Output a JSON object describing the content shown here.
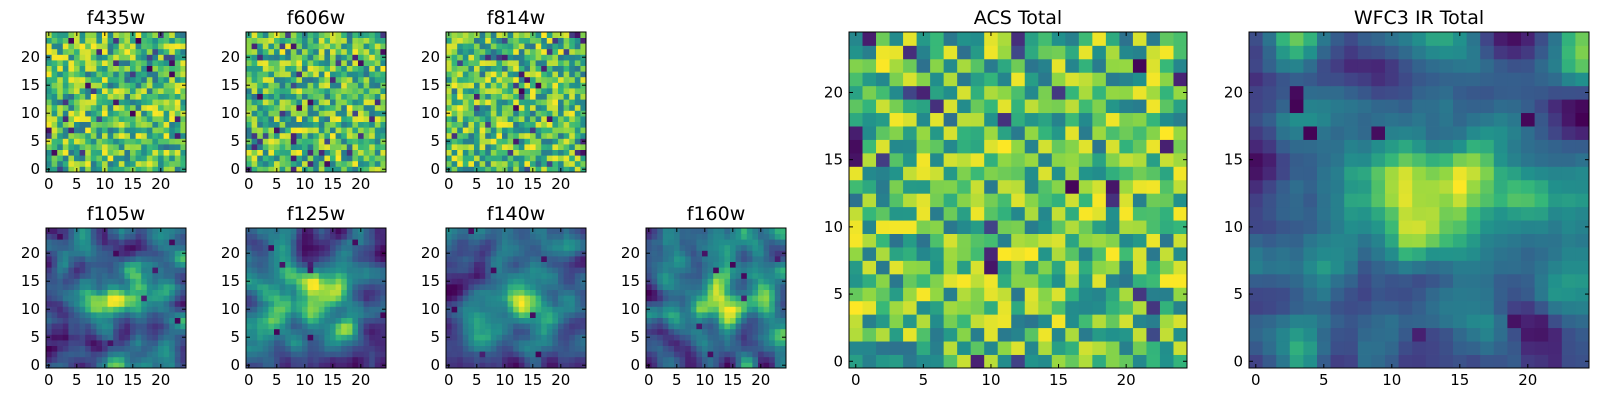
{
  "figure": {
    "colormap": "viridis",
    "colors": {
      "viridis_low": "#440154",
      "viridis_mid": "#21918c",
      "viridis_high": "#fde725",
      "background": "#ffffff",
      "axis": "#000000"
    }
  },
  "chart_data": [
    {
      "type": "heatmap",
      "title": "f435w",
      "grid_size": 25,
      "xlim": [
        -0.5,
        24.5
      ],
      "ylim": [
        -0.5,
        24.5
      ],
      "xticks": [
        0,
        5,
        10,
        15,
        20
      ],
      "yticks": [
        0,
        5,
        10,
        15,
        20
      ],
      "xtick_labels": [
        "0",
        "5",
        "10",
        "15",
        "20"
      ],
      "ytick_labels": [
        "0",
        "5",
        "10",
        "15",
        "20"
      ],
      "pattern": "noise",
      "seed": 11
    },
    {
      "type": "heatmap",
      "title": "f606w",
      "grid_size": 25,
      "xlim": [
        -0.5,
        24.5
      ],
      "ylim": [
        -0.5,
        24.5
      ],
      "xticks": [
        0,
        5,
        10,
        15,
        20
      ],
      "yticks": [
        0,
        5,
        10,
        15,
        20
      ],
      "xtick_labels": [
        "0",
        "5",
        "10",
        "15",
        "20"
      ],
      "ytick_labels": [
        "0",
        "5",
        "10",
        "15",
        "20"
      ],
      "pattern": "noise",
      "seed": 23
    },
    {
      "type": "heatmap",
      "title": "f814w",
      "grid_size": 25,
      "xlim": [
        -0.5,
        24.5
      ],
      "ylim": [
        -0.5,
        24.5
      ],
      "xticks": [
        0,
        5,
        10,
        15,
        20
      ],
      "yticks": [
        0,
        5,
        10,
        15,
        20
      ],
      "xtick_labels": [
        "0",
        "5",
        "10",
        "15",
        "20"
      ],
      "ytick_labels": [
        "0",
        "5",
        "10",
        "15",
        "20"
      ],
      "pattern": "noise",
      "seed": 37
    },
    {
      "type": "heatmap",
      "title": "f105w",
      "grid_size": 25,
      "xlim": [
        -0.5,
        24.5
      ],
      "ylim": [
        -0.5,
        24.5
      ],
      "xticks": [
        0,
        5,
        10,
        15,
        20
      ],
      "yticks": [
        0,
        5,
        10,
        15,
        20
      ],
      "xtick_labels": [
        "0",
        "5",
        "10",
        "15",
        "20"
      ],
      "ytick_labels": [
        "0",
        "5",
        "10",
        "15",
        "20"
      ],
      "pattern": "smooth",
      "seed": 41
    },
    {
      "type": "heatmap",
      "title": "f125w",
      "grid_size": 25,
      "xlim": [
        -0.5,
        24.5
      ],
      "ylim": [
        -0.5,
        24.5
      ],
      "xticks": [
        0,
        5,
        10,
        15,
        20
      ],
      "yticks": [
        0,
        5,
        10,
        15,
        20
      ],
      "xtick_labels": [
        "0",
        "5",
        "10",
        "15",
        "20"
      ],
      "ytick_labels": [
        "0",
        "5",
        "10",
        "15",
        "20"
      ],
      "pattern": "smooth",
      "seed": 53
    },
    {
      "type": "heatmap",
      "title": "f140w",
      "grid_size": 25,
      "xlim": [
        -0.5,
        24.5
      ],
      "ylim": [
        -0.5,
        24.5
      ],
      "xticks": [
        0,
        5,
        10,
        15,
        20
      ],
      "yticks": [
        0,
        5,
        10,
        15,
        20
      ],
      "xtick_labels": [
        "0",
        "5",
        "10",
        "15",
        "20"
      ],
      "ytick_labels": [
        "0",
        "5",
        "10",
        "15",
        "20"
      ],
      "pattern": "smooth",
      "seed": 67
    },
    {
      "type": "heatmap",
      "title": "f160w",
      "grid_size": 25,
      "xlim": [
        -0.5,
        24.5
      ],
      "ylim": [
        -0.5,
        24.5
      ],
      "xticks": [
        0,
        5,
        10,
        15,
        20
      ],
      "yticks": [
        0,
        5,
        10,
        15,
        20
      ],
      "xtick_labels": [
        "0",
        "5",
        "10",
        "15",
        "20"
      ],
      "ytick_labels": [
        "0",
        "5",
        "10",
        "15",
        "20"
      ],
      "pattern": "smooth",
      "seed": 79
    },
    {
      "type": "heatmap",
      "title": "ACS Total",
      "grid_size": 25,
      "xlim": [
        -0.5,
        24.5
      ],
      "ylim": [
        -0.5,
        24.5
      ],
      "xticks": [
        0,
        5,
        10,
        15,
        20
      ],
      "yticks": [
        0,
        5,
        10,
        15,
        20
      ],
      "xtick_labels": [
        "0",
        "5",
        "10",
        "15",
        "20"
      ],
      "ytick_labels": [
        "0",
        "5",
        "10",
        "15",
        "20"
      ],
      "pattern": "noise",
      "seed": 97
    },
    {
      "type": "heatmap",
      "title": "WFC3 IR Total",
      "grid_size": 25,
      "xlim": [
        -0.5,
        24.5
      ],
      "ylim": [
        -0.5,
        24.5
      ],
      "xticks": [
        0,
        5,
        10,
        15,
        20
      ],
      "yticks": [
        0,
        5,
        10,
        15,
        20
      ],
      "xtick_labels": [
        "0",
        "5",
        "10",
        "15",
        "20"
      ],
      "ytick_labels": [
        "0",
        "5",
        "10",
        "15",
        "20"
      ],
      "pattern": "smooth",
      "seed": 113
    }
  ]
}
